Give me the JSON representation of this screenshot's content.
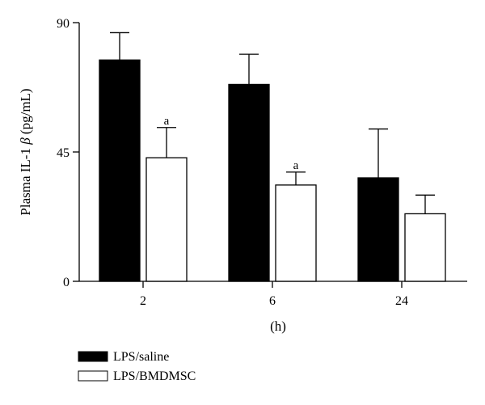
{
  "chart_data": {
    "type": "bar",
    "title": "",
    "xlabel": "(h)",
    "ylabel_prefix": "Plasma IL-1 ",
    "ylabel_symbol": "β",
    "ylabel_suffix": " (pg/mL)",
    "categories": [
      "2",
      "6",
      "24"
    ],
    "ylim": [
      0,
      90
    ],
    "yticks": [
      "0",
      "45",
      "90"
    ],
    "grid": false,
    "legend_position": "bottom-left",
    "series": [
      {
        "name": "LPS/saline",
        "fill": "#000000",
        "values": [
          77,
          68.5,
          36
        ],
        "errors": [
          9.5,
          10.5,
          17
        ],
        "annotations": [
          "",
          "",
          ""
        ]
      },
      {
        "name": "LPS/BMDMSC",
        "fill": "#ffffff",
        "values": [
          43,
          33.5,
          23.5
        ],
        "errors": [
          10.5,
          4.5,
          6.5
        ],
        "annotations": [
          "a",
          "a",
          ""
        ]
      }
    ]
  }
}
